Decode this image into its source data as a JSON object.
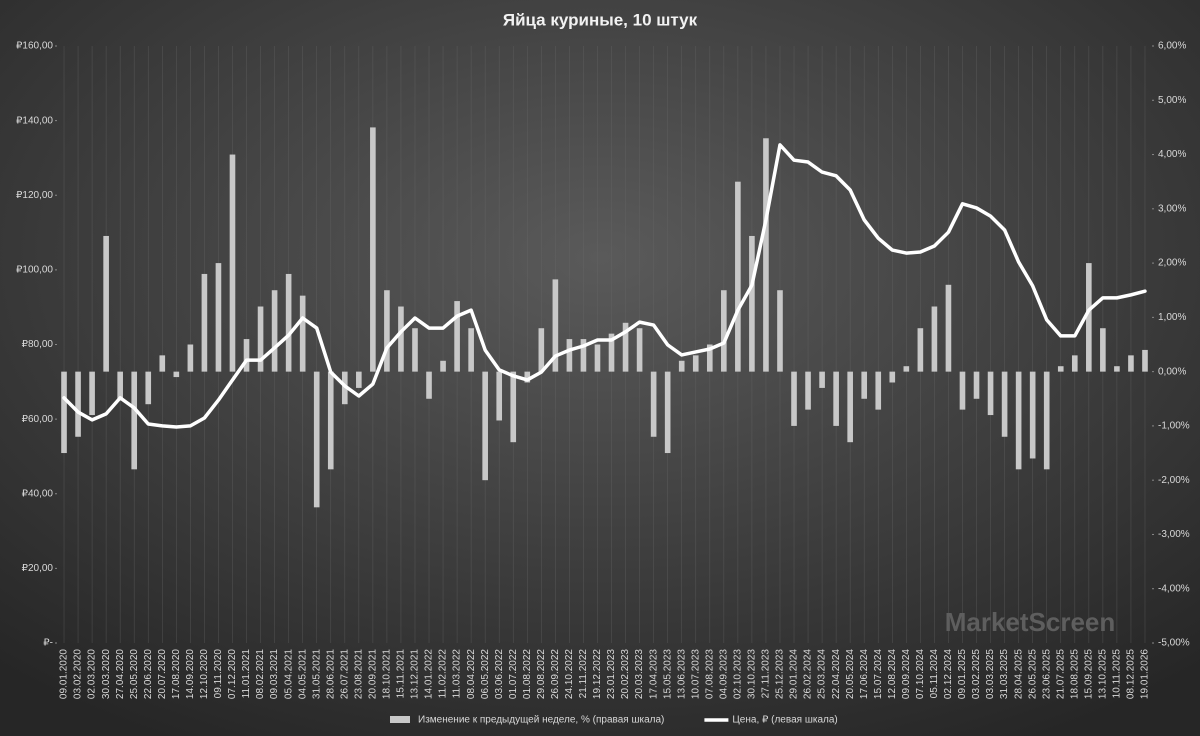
{
  "chart_data": {
    "type": "combo",
    "title": "Яйца куриные, 10 штук",
    "watermark": "MarketScreen",
    "categories": [
      "09.01.2020",
      "03.02.2020",
      "02.03.2020",
      "30.03.2020",
      "27.04.2020",
      "25.05.2020",
      "22.06.2020",
      "20.07.2020",
      "17.08.2020",
      "14.09.2020",
      "12.10.2020",
      "09.11.2020",
      "07.12.2020",
      "11.01.2021",
      "08.02.2021",
      "09.03.2021",
      "05.04.2021",
      "04.05.2021",
      "31.05.2021",
      "28.06.2021",
      "26.07.2021",
      "23.08.2021",
      "20.09.2021",
      "18.10.2021",
      "15.11.2021",
      "13.12.2021",
      "14.01.2022",
      "11.02.2022",
      "11.03.2022",
      "08.04.2022",
      "06.05.2022",
      "03.06.2022",
      "01.07.2022",
      "01.08.2022",
      "29.08.2022",
      "26.09.2022",
      "24.10.2022",
      "21.11.2022",
      "19.12.2022",
      "23.01.2023",
      "20.02.2023",
      "20.03.2023",
      "17.04.2023",
      "15.05.2023",
      "13.06.2023",
      "10.07.2023",
      "07.08.2023",
      "04.09.2023",
      "02.10.2023",
      "30.10.2023",
      "27.11.2023",
      "25.12.2023",
      "29.01.2024",
      "26.02.2024",
      "25.03.2024",
      "22.04.2024",
      "20.05.2024",
      "17.06.2024",
      "15.07.2024",
      "12.08.2024",
      "09.09.2024",
      "07.10.2024",
      "05.11.2024",
      "02.12.2024",
      "09.01.2025",
      "03.02.2025",
      "03.03.2025",
      "31.03.2025",
      "28.04.2025",
      "26.05.2025",
      "23.06.2025",
      "21.07.2025",
      "18.08.2025",
      "15.09.2025",
      "13.10.2025",
      "10.11.2025",
      "08.12.2025",
      "19.01.2026"
    ],
    "series": [
      {
        "name": "Изменение к предыдущей неделе, % (правая шкала)",
        "type": "bar",
        "axis": "y2",
        "color": "#c8c8c8",
        "values": [
          -1.5,
          -1.2,
          -0.8,
          2.5,
          -0.5,
          -1.8,
          -0.6,
          0.3,
          -0.1,
          0.5,
          1.8,
          2.0,
          4.0,
          0.6,
          1.2,
          1.5,
          1.8,
          1.4,
          -2.5,
          -1.8,
          -0.6,
          -0.3,
          4.5,
          1.5,
          1.2,
          0.8,
          -0.5,
          0.2,
          1.3,
          0.8,
          -2.0,
          -0.9,
          -1.3,
          -0.2,
          0.8,
          1.7,
          0.6,
          0.6,
          0.5,
          0.7,
          0.9,
          0.8,
          -1.2,
          -1.5,
          0.2,
          0.3,
          0.5,
          1.5,
          3.5,
          2.5,
          4.3,
          1.5,
          -1.0,
          -0.7,
          -0.3,
          -1.0,
          -1.3,
          -0.5,
          -0.7,
          -0.2,
          0.1,
          0.8,
          1.2,
          1.6,
          -0.7,
          -0.5,
          -0.8,
          -1.2,
          -1.8,
          -1.6,
          -1.8,
          0.1,
          0.3,
          2.0,
          0.8,
          0.1,
          0.3,
          0.4
        ]
      },
      {
        "name": "Цена, ₽ (левая шкала)",
        "type": "line",
        "color": "#ffffff",
        "values": [
          65.7,
          61.9,
          59.8,
          61.4,
          65.7,
          63.0,
          58.7,
          58.2,
          57.9,
          58.2,
          60.3,
          65.1,
          70.5,
          75.8,
          75.8,
          79.1,
          82.5,
          87.1,
          84.4,
          72.6,
          68.9,
          66.2,
          69.4,
          79.1,
          83.4,
          87.1,
          84.4,
          84.4,
          87.6,
          89.2,
          78.5,
          73.2,
          71.6,
          70.5,
          72.6,
          76.9,
          78.5,
          79.6,
          81.2,
          81.2,
          83.4,
          86.0,
          85.2,
          79.9,
          77.2,
          78.0,
          78.8,
          80.4,
          89.2,
          95.9,
          113.4,
          133.5,
          129.4,
          128.9,
          126.2,
          125.2,
          121.4,
          113.4,
          108.5,
          105.3,
          104.5,
          104.8,
          106.4,
          110.1,
          117.7,
          116.6,
          114.4,
          110.7,
          102.1,
          95.7,
          86.6,
          82.3,
          82.3,
          89.2,
          92.5,
          92.5,
          93.3,
          94.3
        ]
      }
    ],
    "ylim": [
      0,
      160
    ],
    "yticks": [
      {
        "value": 0,
        "label": "₽-"
      },
      {
        "value": 20,
        "label": "₽20,00"
      },
      {
        "value": 40,
        "label": "₽40,00"
      },
      {
        "value": 60,
        "label": "₽60,00"
      },
      {
        "value": 80,
        "label": "₽80,00"
      },
      {
        "value": 100,
        "label": "₽100,00"
      },
      {
        "value": 120,
        "label": "₽120,00"
      },
      {
        "value": 140,
        "label": "₽140,00"
      },
      {
        "value": 160,
        "label": "₽160,00"
      }
    ],
    "y2lim": [
      -5,
      6
    ],
    "y2ticks": [
      {
        "value": -5,
        "label": "-5,00%"
      },
      {
        "value": -4,
        "label": "-4,00%"
      },
      {
        "value": -3,
        "label": "-3,00%"
      },
      {
        "value": -2,
        "label": "-2,00%"
      },
      {
        "value": -1,
        "label": "-1,00%"
      },
      {
        "value": 0,
        "label": "0,00%"
      },
      {
        "value": 1,
        "label": "1,00%"
      },
      {
        "value": 2,
        "label": "2,00%"
      },
      {
        "value": 3,
        "label": "3,00%"
      },
      {
        "value": 4,
        "label": "4,00%"
      },
      {
        "value": 5,
        "label": "5,00%"
      },
      {
        "value": 6,
        "label": "6,00%"
      }
    ],
    "grid": true,
    "legend": "bottom"
  }
}
